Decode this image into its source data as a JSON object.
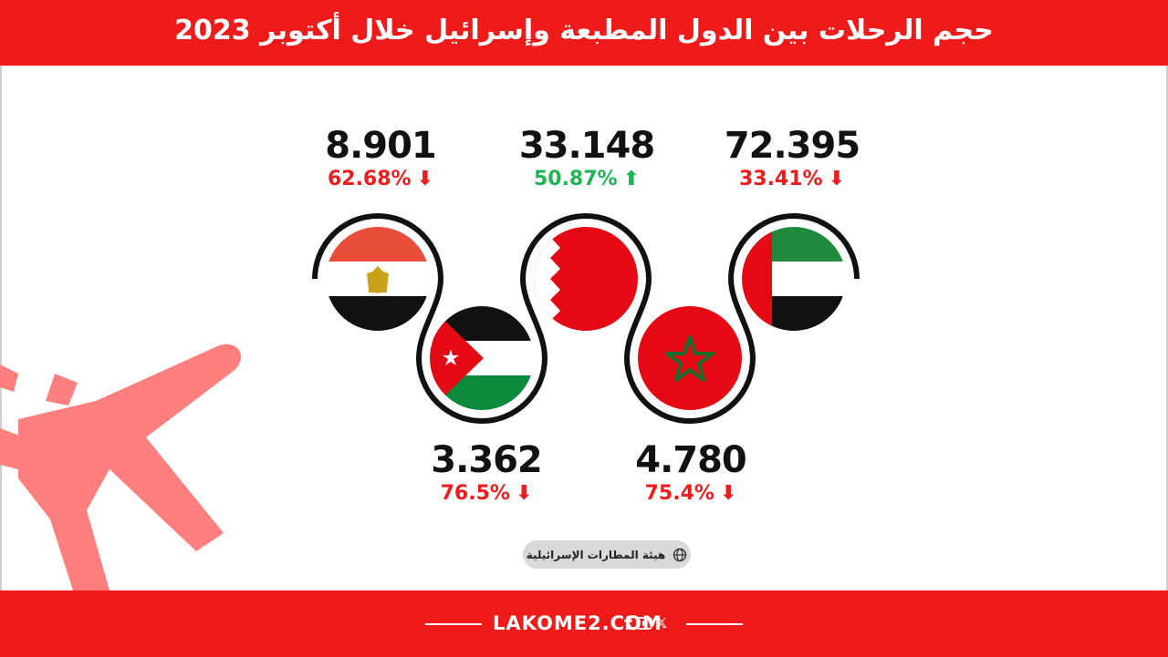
{
  "header": {
    "title": "حجم الرحلات بين الدول المطبعة وإسرائيل خلال أكتوبر 2023"
  },
  "colors": {
    "brand_red": "#ef1b1b",
    "down": "#ee1c1c",
    "up": "#1fb553",
    "plane": "#ff7f7f"
  },
  "countries": [
    {
      "flag": "egypt-flag",
      "value": "8.901",
      "change": "62.68%",
      "direction": "down",
      "arrow": "⬇"
    },
    {
      "flag": "bahrain-flag",
      "value": "33.148",
      "change": "50.87%",
      "direction": "up",
      "arrow": "⬆"
    },
    {
      "flag": "uae-flag",
      "value": "72.395",
      "change": "33.41%",
      "direction": "down",
      "arrow": "⬇"
    },
    {
      "flag": "jordan-flag",
      "value": "3.362",
      "change": "76.5%",
      "direction": "down",
      "arrow": "⬇"
    },
    {
      "flag": "morocco-flag",
      "value": "4.780",
      "change": "75.4%",
      "direction": "down",
      "arrow": "⬇"
    }
  ],
  "source": {
    "label": "هيئة المطارات الإسرائيلية",
    "icon": "globe-icon"
  },
  "footer": {
    "site": "LAKOME2.COM",
    "icons": [
      "facebook-icon",
      "youtube-icon",
      "x-icon"
    ],
    "facebook_glyph": "f",
    "x_glyph": "𝕏"
  }
}
